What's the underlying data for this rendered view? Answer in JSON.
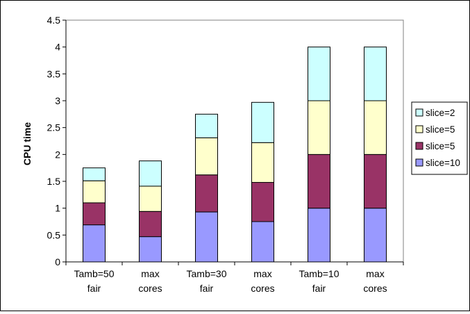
{
  "chart_data": {
    "type": "bar",
    "stacked": true,
    "title": "",
    "xlabel": "",
    "ylabel": "CPU time",
    "ylim": [
      0,
      4.5
    ],
    "yticks": [
      "0",
      "0.5",
      "1",
      "1.5",
      "2",
      "2.5",
      "3",
      "3.5",
      "4",
      "4.5"
    ],
    "categories": [
      [
        "Tamb=50",
        "fair"
      ],
      [
        "max",
        "cores"
      ],
      [
        "Tamb=30",
        "fair"
      ],
      [
        "max",
        "cores"
      ],
      [
        "Tamb=10",
        "fair"
      ],
      [
        "max",
        "cores"
      ]
    ],
    "series": [
      {
        "name": "slice=10",
        "color": "#9999ff",
        "values": [
          0.69,
          0.47,
          0.93,
          0.75,
          1.0,
          1.0
        ]
      },
      {
        "name": "slice=5",
        "color": "#993366",
        "values": [
          0.41,
          0.47,
          0.69,
          0.73,
          1.0,
          1.0
        ]
      },
      {
        "name": "slice=5",
        "color": "#ffffcc",
        "values": [
          0.41,
          0.47,
          0.69,
          0.74,
          1.0,
          1.0
        ]
      },
      {
        "name": "slice=2",
        "color": "#ccffff",
        "values": [
          0.24,
          0.47,
          0.44,
          0.75,
          1.0,
          1.0
        ]
      }
    ],
    "grid": false,
    "legend_position": "right"
  }
}
